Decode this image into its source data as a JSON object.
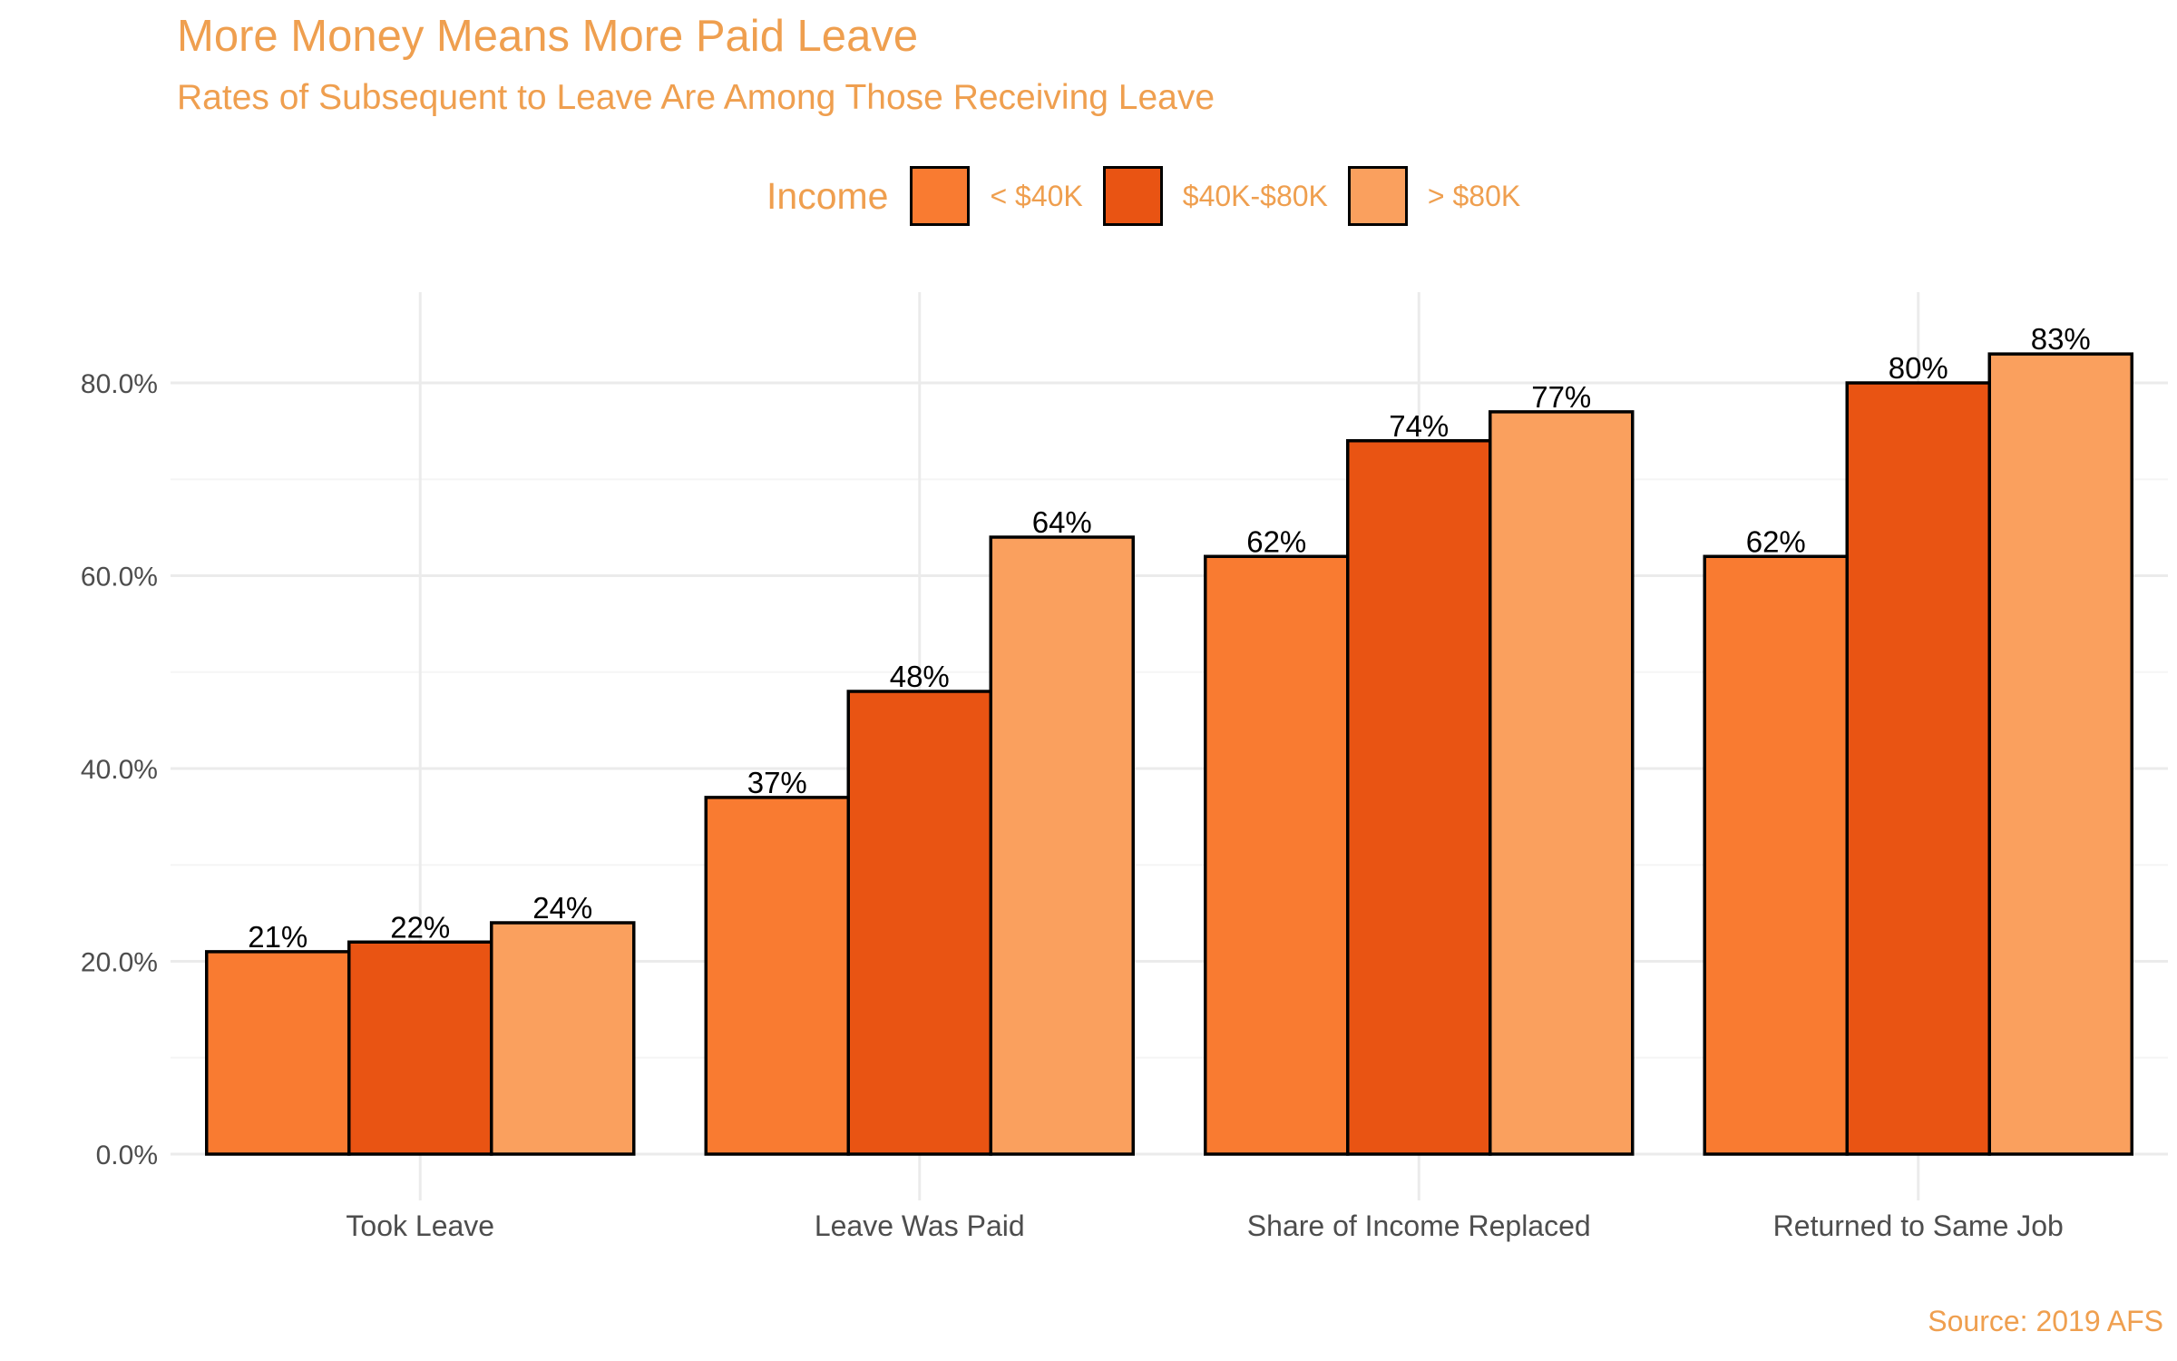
{
  "chart_data": {
    "type": "bar",
    "title": "More Money Means More Paid Leave",
    "subtitle": "Rates of Subsequent to Leave Are Among Those Receiving Leave",
    "legend_title": "Income",
    "legend_position": "top",
    "categories": [
      "Took Leave",
      "Leave Was Paid",
      "Share of Income Replaced",
      "Returned to Same Job"
    ],
    "series": [
      {
        "name": "< $40K",
        "color": "#F97B31",
        "values": [
          21,
          37,
          62,
          62
        ],
        "labels": [
          "21%",
          "37%",
          "62%",
          "62%"
        ]
      },
      {
        "name": "$40K-$80K",
        "color": "#E95413",
        "values": [
          22,
          48,
          74,
          80
        ],
        "labels": [
          "22%",
          "48%",
          "74%",
          "80%"
        ]
      },
      {
        "name": "> $80K",
        "color": "#FAA05E",
        "values": [
          24,
          64,
          77,
          83
        ],
        "labels": [
          "24%",
          "64%",
          "77%",
          "83%"
        ]
      }
    ],
    "y_ticks": [
      0,
      20,
      40,
      60,
      80
    ],
    "y_tick_labels": [
      "0.0%",
      "20.0%",
      "40.0%",
      "60.0%",
      "80.0%"
    ],
    "ylim": [
      0,
      90
    ],
    "grid": true,
    "source": "Source: 2019 AFS"
  }
}
